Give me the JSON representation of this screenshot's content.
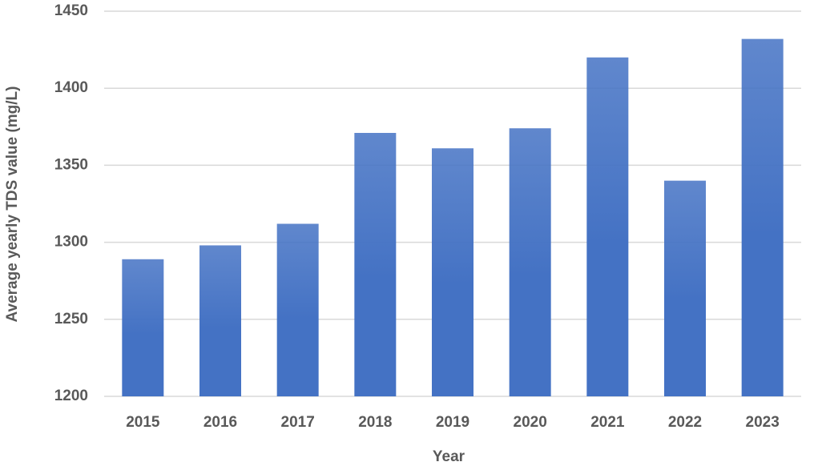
{
  "chart_data": {
    "type": "bar",
    "x_label": "Year",
    "y_label": "Average yearly TDS value (mg/L)",
    "categories": [
      "2015",
      "2016",
      "2017",
      "2018",
      "2019",
      "2020",
      "2021",
      "2022",
      "2023"
    ],
    "values": [
      1289,
      1298,
      1312,
      1371,
      1361,
      1374,
      1420,
      1340,
      1432
    ],
    "color": "#4472c4",
    "ylim": [
      1200,
      1450
    ],
    "yticks": [
      1200,
      1250,
      1300,
      1350,
      1400,
      1450
    ],
    "grid": true
  }
}
